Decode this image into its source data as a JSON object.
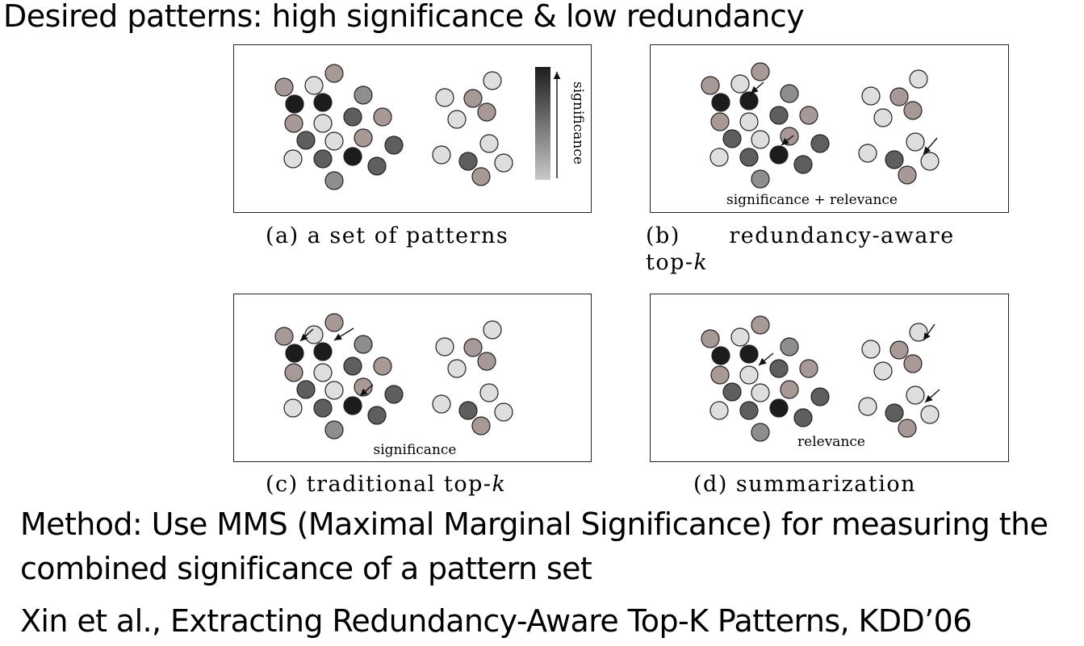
{
  "heading": "Desired patterns: high significance & low redundancy",
  "panels": {
    "a": {
      "caption": "(a) a set of patterns",
      "legend_label": "significance"
    },
    "b": {
      "caption_line1": "(b)      redundancy-aware",
      "caption_line2": "top-",
      "caption_k": "k",
      "inner_label": "significance + relevance"
    },
    "c": {
      "caption": "(c) traditional top-",
      "caption_k": "k",
      "inner_label": "significance"
    },
    "d": {
      "caption": "(d) summarization",
      "inner_label": "relevance"
    }
  },
  "colors": {
    "black": "#1c1c1c",
    "dark": "#5e5e5e",
    "mid": "#8e8e8e",
    "light": "#dedede",
    "brown": "#a89896"
  },
  "body": {
    "line1": "Method:  Use MMS (Maximal Marginal Significance) for measuring the",
    "line2": "combined significance of a pattern set",
    "line3": "Xin et al., Extracting Redundancy-Aware Top-K Patterns, KDD’06"
  }
}
